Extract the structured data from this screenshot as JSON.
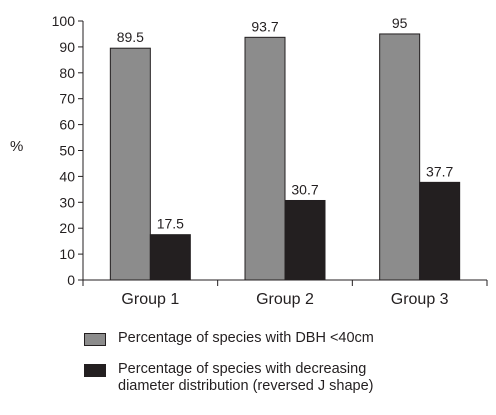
{
  "chart_data": {
    "type": "bar",
    "categories": [
      "Group 1",
      "Group 2",
      "Group 3"
    ],
    "series": [
      {
        "name": "Percentage of species with DBH <40cm",
        "values": [
          89.5,
          93.7,
          95
        ],
        "labels": [
          "89.5",
          "93.7",
          "95"
        ],
        "color": "#8c8c8c"
      },
      {
        "name": "Percentage of species with decreasing diameter distribution (reversed J shape)",
        "values": [
          17.5,
          30.7,
          37.7
        ],
        "labels": [
          "17.5",
          "30.7",
          "37.7"
        ],
        "color": "#231f20"
      }
    ],
    "title": "",
    "xlabel": "",
    "ylabel": "%",
    "ylim": [
      0,
      100
    ],
    "yticks": [
      0,
      10,
      20,
      30,
      40,
      50,
      60,
      70,
      80,
      90,
      100
    ],
    "grid": false,
    "legend_position": "bottom"
  }
}
